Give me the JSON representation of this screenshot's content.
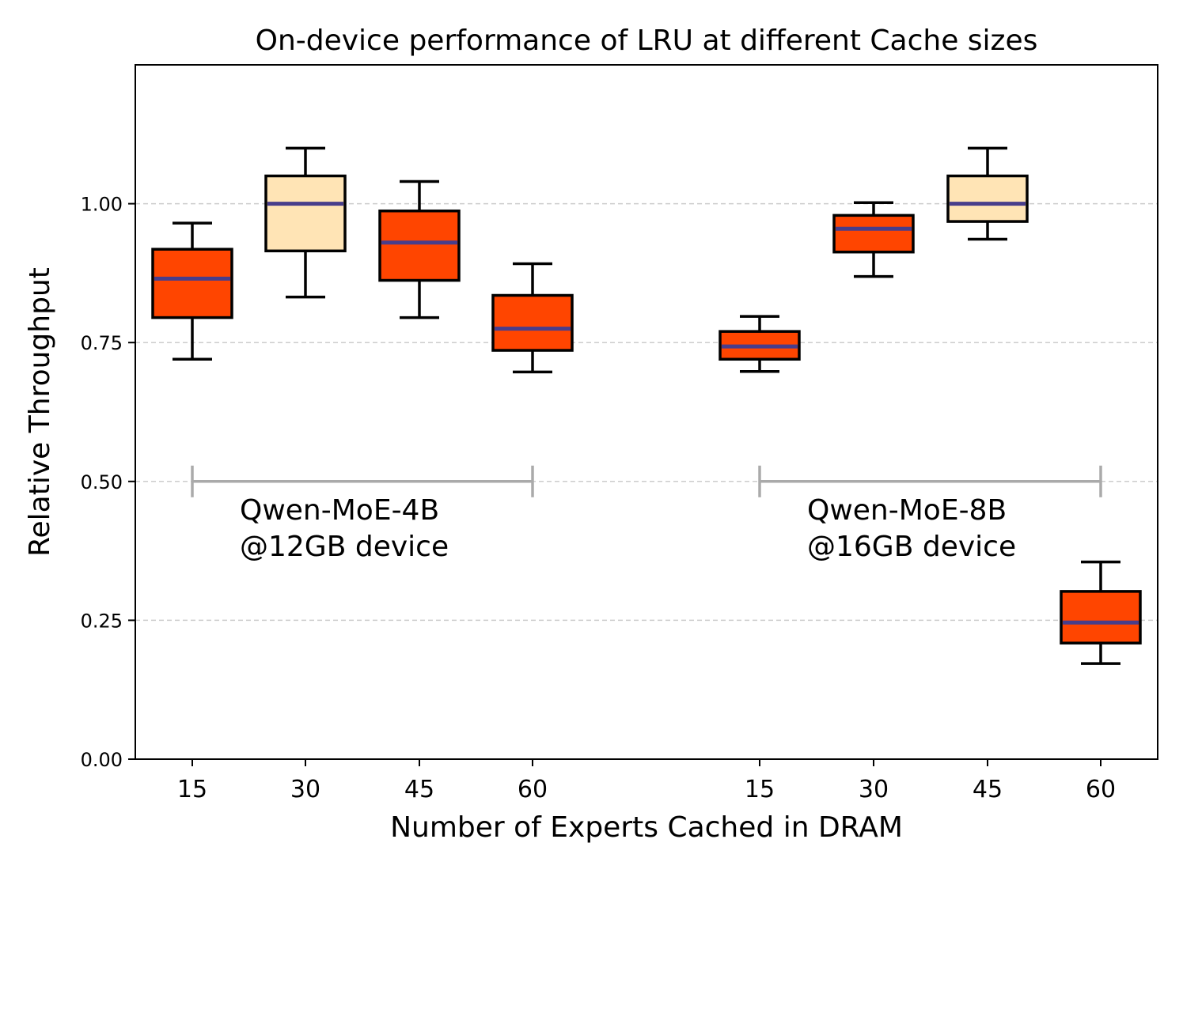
{
  "chart_data": {
    "type": "box",
    "title": "On-device performance of LRU at different Cache sizes",
    "xlabel": "Number of Experts Cached in DRAM",
    "ylabel": "Relative Throughput",
    "ylim": [
      0,
      1.25
    ],
    "yticks": [
      "0.00",
      "0.25",
      "0.50",
      "0.75",
      "1.00"
    ],
    "ytick_values": [
      0,
      0.25,
      0.5,
      0.75,
      1.0
    ],
    "grid": "y-dashed",
    "colors": {
      "default": "#FF4500",
      "highlight": "#FFE4B5",
      "median": "#483D8B",
      "bracket": "#AAAAAA",
      "grid": "#CCCCCC"
    },
    "groups": [
      {
        "label_line1": "Qwen-MoE-4B",
        "label_line2": "@12GB device",
        "boxes": [
          {
            "x": "15",
            "whislo": 0.72,
            "q1": 0.795,
            "med": 0.865,
            "q3": 0.918,
            "whishi": 0.965,
            "highlight": false
          },
          {
            "x": "30",
            "whislo": 0.832,
            "q1": 0.915,
            "med": 1.0,
            "q3": 1.05,
            "whishi": 1.1,
            "highlight": true
          },
          {
            "x": "45",
            "whislo": 0.795,
            "q1": 0.862,
            "med": 0.93,
            "q3": 0.987,
            "whishi": 1.04,
            "highlight": false
          },
          {
            "x": "60",
            "whislo": 0.697,
            "q1": 0.736,
            "med": 0.775,
            "q3": 0.835,
            "whishi": 0.892,
            "highlight": false
          }
        ]
      },
      {
        "label_line1": "Qwen-MoE-8B",
        "label_line2": "@16GB device",
        "boxes": [
          {
            "x": "15",
            "whislo": 0.698,
            "q1": 0.72,
            "med": 0.743,
            "q3": 0.77,
            "whishi": 0.797,
            "highlight": false
          },
          {
            "x": "30",
            "whislo": 0.869,
            "q1": 0.913,
            "med": 0.955,
            "q3": 0.979,
            "whishi": 1.002,
            "highlight": false
          },
          {
            "x": "45",
            "whislo": 0.936,
            "q1": 0.968,
            "med": 1.0,
            "q3": 1.05,
            "whishi": 1.1,
            "highlight": true
          },
          {
            "x": "60",
            "whislo": 0.172,
            "q1": 0.209,
            "med": 0.246,
            "q3": 0.302,
            "whishi": 0.355,
            "highlight": false
          }
        ]
      }
    ]
  }
}
